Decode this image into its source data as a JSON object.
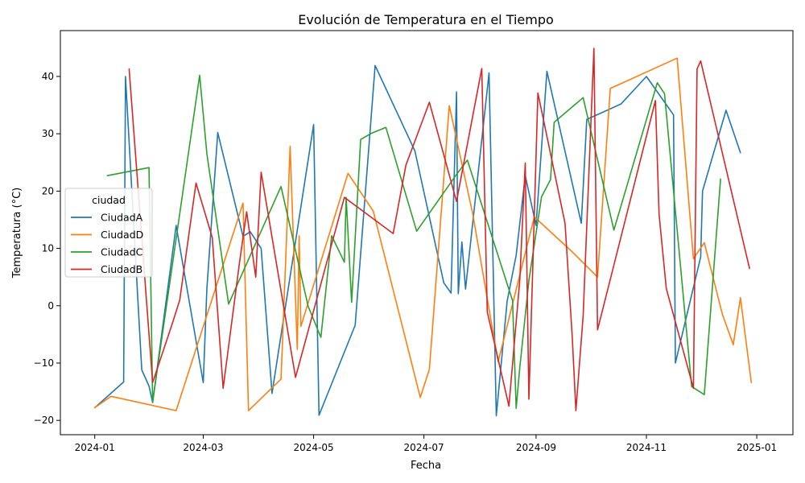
{
  "chart_data": {
    "type": "line",
    "title": "Evolución de Temperatura en el Tiempo",
    "xlabel": "Fecha",
    "ylabel": "Temperatura (°C)",
    "legend_title": "ciudad",
    "legend_position": "left",
    "grid": false,
    "xlim": [
      "2023-12-13",
      "2025-01-21"
    ],
    "ylim": [
      -22.5,
      48
    ],
    "x_ticks": [
      {
        "value": "2024-01-01",
        "label": "2024-01"
      },
      {
        "value": "2024-03-01",
        "label": "2024-03"
      },
      {
        "value": "2024-05-01",
        "label": "2024-05"
      },
      {
        "value": "2024-07-01",
        "label": "2024-07"
      },
      {
        "value": "2024-09-01",
        "label": "2024-09"
      },
      {
        "value": "2024-11-01",
        "label": "2024-11"
      },
      {
        "value": "2025-01-01",
        "label": "2025-01"
      }
    ],
    "y_ticks": [
      -20,
      -10,
      0,
      10,
      20,
      30,
      40
    ],
    "series": [
      {
        "name": "CiudadA",
        "color": "#1f77b4",
        "points": [
          [
            "2024-01-01",
            -17.8
          ],
          [
            "2024-01-17",
            -13.3
          ],
          [
            "2024-01-18",
            40.0
          ],
          [
            "2024-01-27",
            -11.2
          ],
          [
            "2024-01-31",
            -14.0
          ],
          [
            "2024-02-02",
            -16.9
          ],
          [
            "2024-02-15",
            14.0
          ],
          [
            "2024-03-01",
            -13.4
          ],
          [
            "2024-03-03",
            3.0
          ],
          [
            "2024-03-09",
            30.2
          ],
          [
            "2024-03-23",
            12.1
          ],
          [
            "2024-03-27",
            12.9
          ],
          [
            "2024-04-02",
            10.0
          ],
          [
            "2024-04-08",
            -15.3
          ],
          [
            "2024-05-01",
            31.6
          ],
          [
            "2024-05-04",
            -19.1
          ],
          [
            "2024-05-24",
            -3.4
          ],
          [
            "2024-06-04",
            41.9
          ],
          [
            "2024-06-26",
            27.0
          ],
          [
            "2024-07-12",
            4.0
          ],
          [
            "2024-07-16",
            2.2
          ],
          [
            "2024-07-19",
            37.3
          ],
          [
            "2024-07-20",
            2.1
          ],
          [
            "2024-07-22",
            11.1
          ],
          [
            "2024-07-24",
            2.9
          ],
          [
            "2024-08-06",
            40.6
          ],
          [
            "2024-08-10",
            -19.2
          ],
          [
            "2024-08-16",
            0.8
          ],
          [
            "2024-08-21",
            8.8
          ],
          [
            "2024-08-26",
            22.7
          ],
          [
            "2024-09-01",
            14.0
          ],
          [
            "2024-09-07",
            40.9
          ],
          [
            "2024-09-26",
            14.4
          ],
          [
            "2024-09-29",
            32.5
          ],
          [
            "2024-10-18",
            35.2
          ],
          [
            "2024-11-01",
            40.0
          ],
          [
            "2024-11-16",
            33.3
          ],
          [
            "2024-11-17",
            -10.0
          ],
          [
            "2024-12-01",
            8.5
          ],
          [
            "2024-12-02",
            20.0
          ],
          [
            "2024-12-15",
            34.1
          ],
          [
            "2024-12-23",
            26.7
          ]
        ]
      },
      {
        "name": "CiudadD",
        "color": "#ff7f0e",
        "points": [
          [
            "2024-01-01",
            -17.8
          ],
          [
            "2024-01-10",
            -15.8
          ],
          [
            "2024-02-15",
            -18.3
          ],
          [
            "2024-03-23",
            17.9
          ],
          [
            "2024-03-26",
            -18.3
          ],
          [
            "2024-04-13",
            -12.8
          ],
          [
            "2024-04-18",
            27.8
          ],
          [
            "2024-04-22",
            -7.6
          ],
          [
            "2024-04-23",
            12.2
          ],
          [
            "2024-04-24",
            -3.6
          ],
          [
            "2024-05-20",
            23.1
          ],
          [
            "2024-06-03",
            16.5
          ],
          [
            "2024-06-29",
            -16.0
          ],
          [
            "2024-07-04",
            -11.1
          ],
          [
            "2024-07-15",
            34.9
          ],
          [
            "2024-07-28",
            16.0
          ],
          [
            "2024-08-11",
            -9.8
          ],
          [
            "2024-08-31",
            15.5
          ],
          [
            "2024-09-21",
            9.4
          ],
          [
            "2024-10-05",
            5.0
          ],
          [
            "2024-10-12",
            37.9
          ],
          [
            "2024-11-18",
            43.2
          ],
          [
            "2024-11-27",
            8.2
          ],
          [
            "2024-12-03",
            11.0
          ],
          [
            "2024-12-13",
            -1.5
          ],
          [
            "2024-12-19",
            -6.8
          ],
          [
            "2024-12-23",
            1.4
          ],
          [
            "2024-12-29",
            -13.4
          ]
        ]
      },
      {
        "name": "CiudadC",
        "color": "#2ca02c",
        "points": [
          [
            "2024-01-08",
            22.7
          ],
          [
            "2024-01-31",
            24.1
          ],
          [
            "2024-02-02",
            -16.8
          ],
          [
            "2024-02-28",
            40.2
          ],
          [
            "2024-03-03",
            26.5
          ],
          [
            "2024-03-15",
            0.3
          ],
          [
            "2024-04-13",
            20.8
          ],
          [
            "2024-04-28",
            -0.1
          ],
          [
            "2024-05-05",
            -5.5
          ],
          [
            "2024-05-11",
            12.2
          ],
          [
            "2024-05-18",
            7.6
          ],
          [
            "2024-05-19",
            18.9
          ],
          [
            "2024-05-22",
            0.6
          ],
          [
            "2024-05-27",
            29.0
          ],
          [
            "2024-06-02",
            30.1
          ],
          [
            "2024-06-10",
            31.1
          ],
          [
            "2024-06-27",
            13.0
          ],
          [
            "2024-07-19",
            22.9
          ],
          [
            "2024-07-25",
            25.4
          ],
          [
            "2024-08-19",
            0.9
          ],
          [
            "2024-08-21",
            -17.9
          ],
          [
            "2024-08-23",
            -10.8
          ],
          [
            "2024-08-28",
            4.4
          ],
          [
            "2024-09-04",
            19.0
          ],
          [
            "2024-09-09",
            22.0
          ],
          [
            "2024-09-11",
            32.0
          ],
          [
            "2024-09-27",
            36.3
          ],
          [
            "2024-10-14",
            13.2
          ],
          [
            "2024-11-07",
            38.9
          ],
          [
            "2024-11-11",
            37.0
          ],
          [
            "2024-11-26",
            -14.1
          ],
          [
            "2024-12-03",
            -15.5
          ],
          [
            "2024-12-12",
            22.1
          ]
        ]
      },
      {
        "name": "CiudadB",
        "color": "#d62728",
        "points": [
          [
            "2024-01-20",
            41.3
          ],
          [
            "2024-02-02",
            -13.4
          ],
          [
            "2024-02-13",
            -3.0
          ],
          [
            "2024-02-17",
            1.0
          ],
          [
            "2024-02-26",
            21.4
          ],
          [
            "2024-03-06",
            11.9
          ],
          [
            "2024-03-12",
            -14.4
          ],
          [
            "2024-03-21",
            7.4
          ],
          [
            "2024-03-25",
            16.4
          ],
          [
            "2024-03-30",
            5.0
          ],
          [
            "2024-04-02",
            23.3
          ],
          [
            "2024-04-21",
            -12.5
          ],
          [
            "2024-05-18",
            18.9
          ],
          [
            "2024-06-14",
            12.6
          ],
          [
            "2024-06-21",
            24.5
          ],
          [
            "2024-07-04",
            35.5
          ],
          [
            "2024-07-19",
            18.2
          ],
          [
            "2024-08-02",
            41.4
          ],
          [
            "2024-08-05",
            -1.1
          ],
          [
            "2024-08-17",
            -17.5
          ],
          [
            "2024-08-23",
            4.5
          ],
          [
            "2024-08-26",
            24.9
          ],
          [
            "2024-08-28",
            -16.3
          ],
          [
            "2024-09-02",
            37.1
          ],
          [
            "2024-09-17",
            14.4
          ],
          [
            "2024-09-21",
            -5.5
          ],
          [
            "2024-09-23",
            -18.3
          ],
          [
            "2024-09-27",
            -1.8
          ],
          [
            "2024-10-03",
            44.9
          ],
          [
            "2024-10-05",
            -4.2
          ],
          [
            "2024-11-06",
            35.8
          ],
          [
            "2024-11-08",
            16.0
          ],
          [
            "2024-11-12",
            3.0
          ],
          [
            "2024-11-27",
            -14.4
          ],
          [
            "2024-11-29",
            41.3
          ],
          [
            "2024-12-01",
            42.7
          ],
          [
            "2024-12-28",
            6.5
          ]
        ]
      }
    ]
  }
}
